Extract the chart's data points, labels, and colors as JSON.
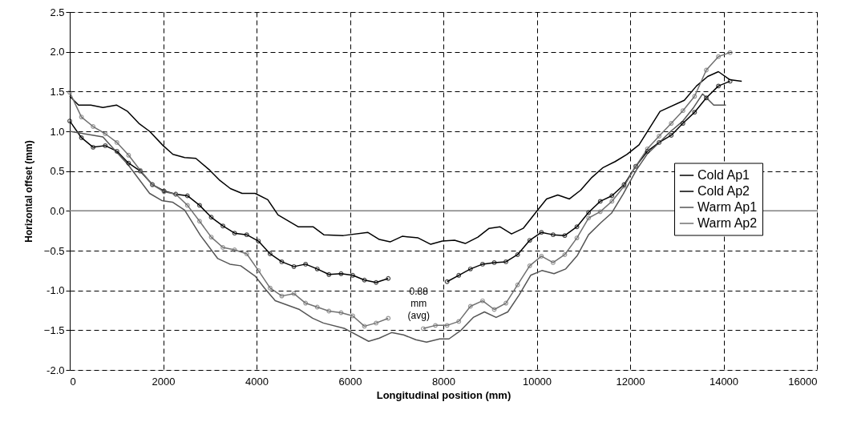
{
  "chart_data": {
    "type": "line",
    "xlabel": "Longitudinal position (mm)",
    "ylabel": "Horizontal offset (mm)",
    "xlim": [
      0,
      16000
    ],
    "xticks": [
      0,
      2000,
      4000,
      6000,
      8000,
      10000,
      12000,
      14000,
      16000
    ],
    "ylim": [
      -2.0,
      2.5
    ],
    "yticks": [
      {
        "value": -2,
        "label": "-2.0"
      },
      -1.5,
      {
        "value": -1,
        "label": "-1.0"
      },
      -0.5,
      {
        "value": 0,
        "label": "0.0"
      },
      0.5,
      {
        "value": 1,
        "label": "1.0"
      },
      1.5,
      {
        "value": 2,
        "label": "2.0"
      },
      2.5
    ],
    "grid": true,
    "legend": "right",
    "ref_lines": [
      {
        "axis": "y",
        "value": 0,
        "color": "#808080",
        "line_style": "solid"
      }
    ],
    "annotations": [
      "0.88 mm (avg)"
    ],
    "series": [
      {
        "name": "Cold Ap1",
        "color": "#000000",
        "marker": "none",
        "x": [
          0,
          190,
          450,
          710,
          1000,
          1240,
          1480,
          1710,
          2000,
          2210,
          2460,
          2700,
          3000,
          3200,
          3440,
          3690,
          3970,
          4240,
          4460,
          4890,
          5210,
          5440,
          5860,
          6380,
          6630,
          6860,
          7120,
          7460,
          7730,
          7980,
          8240,
          8470,
          8740,
          8980,
          9210,
          9460,
          9710,
          9980,
          10210,
          10450,
          10700,
          10940,
          11180,
          11410,
          11680,
          11930,
          12190,
          12640,
          13160,
          13420,
          13660,
          13890,
          14130,
          14390
        ],
        "values": [
          1.44,
          1.33,
          1.33,
          1.3,
          1.33,
          1.25,
          1.1,
          1.0,
          0.82,
          0.71,
          0.67,
          0.66,
          0.51,
          0.39,
          0.28,
          0.22,
          0.22,
          0.14,
          -0.05,
          -0.2,
          -0.2,
          -0.3,
          -0.31,
          -0.27,
          -0.36,
          -0.39,
          -0.32,
          -0.34,
          -0.42,
          -0.38,
          -0.37,
          -0.41,
          -0.33,
          -0.22,
          -0.2,
          -0.29,
          -0.22,
          -0.02,
          0.15,
          0.2,
          0.15,
          0.26,
          0.42,
          0.54,
          0.62,
          0.71,
          0.83,
          1.25,
          1.39,
          1.57,
          1.69,
          1.75,
          1.65,
          1.63
        ]
      },
      {
        "name": "Cold Ap2",
        "color": "#000000",
        "marker": "circle",
        "x": [
          0,
          250,
          500,
          760,
          1010,
          1260,
          1510,
          1770,
          2020,
          2270,
          2520,
          2780,
          3030,
          3280,
          3530,
          3790,
          4040,
          4290,
          4540,
          4800,
          5050,
          5300,
          5550,
          5810,
          6060,
          6310,
          6560,
          6820,
          7070,
          7320,
          7570,
          7830,
          8080,
          8330,
          8580,
          8840,
          9090,
          9340,
          9590,
          9850,
          10100,
          10350,
          10600,
          10860,
          11110,
          11360,
          11610,
          11870,
          12120,
          12370,
          12620,
          12880,
          13130,
          13380,
          13630,
          13890,
          14140
        ],
        "values": [
          1.13,
          0.92,
          0.8,
          0.82,
          0.75,
          0.6,
          0.5,
          0.33,
          0.25,
          0.21,
          0.19,
          0.07,
          -0.08,
          -0.19,
          -0.28,
          -0.3,
          -0.38,
          -0.54,
          -0.64,
          -0.7,
          -0.67,
          -0.73,
          -0.8,
          -0.79,
          -0.81,
          -0.87,
          -0.9,
          -0.85,
          null,
          null,
          null,
          null,
          -0.89,
          -0.81,
          -0.73,
          -0.67,
          -0.65,
          -0.64,
          -0.55,
          -0.37,
          -0.27,
          -0.3,
          -0.31,
          -0.2,
          -0.02,
          0.12,
          0.19,
          0.33,
          0.56,
          0.75,
          0.86,
          0.95,
          1.1,
          1.24,
          1.42,
          1.57,
          1.63
        ]
      },
      {
        "name": "Warm Ap1",
        "color": "#555555",
        "marker": "none",
        "x": [
          0,
          710,
          1000,
          1250,
          1710,
          1970,
          2200,
          2460,
          2800,
          3170,
          3430,
          3660,
          3970,
          4170,
          4400,
          4920,
          5200,
          5430,
          5890,
          6400,
          6630,
          6890,
          7150,
          7410,
          7640,
          7920,
          8120,
          8380,
          8640,
          8880,
          9130,
          9380,
          9620,
          9870,
          10110,
          10370,
          10620,
          10870,
          11110,
          11370,
          11600,
          11850,
          12130,
          12360,
          12870,
          13130,
          13360,
          13550,
          13790,
          14050
        ],
        "values": [
          1.0,
          0.93,
          0.74,
          0.58,
          0.22,
          0.13,
          0.11,
          0.01,
          -0.31,
          -0.6,
          -0.67,
          -0.69,
          -0.82,
          -0.97,
          -1.13,
          -1.24,
          -1.35,
          -1.41,
          -1.48,
          -1.64,
          -1.6,
          -1.53,
          -1.56,
          -1.62,
          -1.65,
          -1.61,
          -1.61,
          -1.5,
          -1.34,
          -1.27,
          -1.34,
          -1.27,
          -1.06,
          -0.81,
          -0.75,
          -0.79,
          -0.73,
          -0.56,
          -0.3,
          -0.15,
          -0.03,
          0.21,
          0.51,
          0.71,
          1.0,
          1.13,
          1.3,
          1.47,
          1.33,
          1.33
        ]
      },
      {
        "name": "Warm Ap2",
        "color": "#707070",
        "marker": "circle",
        "x": [
          0,
          250,
          500,
          760,
          1010,
          1260,
          1510,
          1770,
          2020,
          2270,
          2520,
          2780,
          3030,
          3280,
          3530,
          3790,
          4040,
          4290,
          4540,
          4800,
          5050,
          5300,
          5550,
          5810,
          6060,
          6310,
          6560,
          6820,
          7070,
          7320,
          7570,
          7830,
          8080,
          8330,
          8580,
          8840,
          9090,
          9340,
          9590,
          9850,
          10100,
          10350,
          10600,
          10860,
          11110,
          11360,
          11610,
          11870,
          12120,
          12370,
          12620,
          12880,
          13130,
          13380,
          13630,
          13890,
          14140
        ],
        "values": [
          1.49,
          1.18,
          1.06,
          0.97,
          0.86,
          0.7,
          0.51,
          0.33,
          0.24,
          0.21,
          0.07,
          -0.13,
          -0.33,
          -0.46,
          -0.49,
          -0.54,
          -0.75,
          -0.97,
          -1.07,
          -1.04,
          -1.16,
          -1.21,
          -1.26,
          -1.28,
          -1.32,
          -1.45,
          -1.41,
          -1.35,
          null,
          null,
          -1.48,
          -1.44,
          -1.44,
          -1.39,
          -1.2,
          -1.13,
          -1.24,
          -1.16,
          -0.93,
          -0.69,
          -0.57,
          -0.65,
          -0.55,
          -0.34,
          -0.09,
          -0.01,
          0.12,
          0.31,
          0.56,
          0.78,
          0.94,
          1.1,
          1.26,
          1.44,
          1.77,
          1.94,
          1.99
        ]
      }
    ]
  }
}
